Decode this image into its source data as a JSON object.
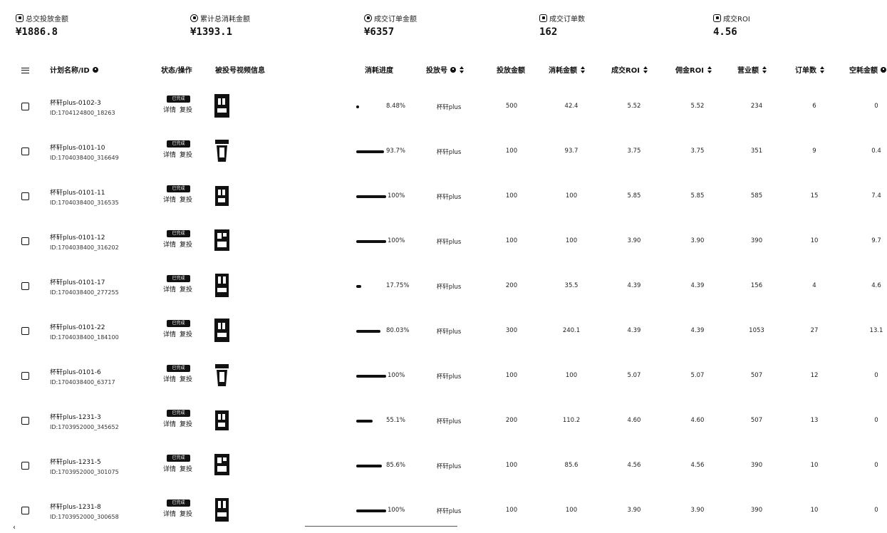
{
  "stats": [
    {
      "label": "总交投放金额",
      "value": "¥1886.8",
      "icon": "wallet-icon"
    },
    {
      "label": "累计总消耗金额",
      "value": "¥1393.1",
      "icon": "spend-icon"
    },
    {
      "label": "成交订单金额",
      "value": "¥6357",
      "icon": "order-amount-icon"
    },
    {
      "label": "成交订单数",
      "value": "162",
      "icon": "order-count-icon"
    },
    {
      "label": "成交ROI",
      "value": "4.56",
      "icon": "roi-icon"
    }
  ],
  "table": {
    "headers": {
      "plan": "计划名称/ID",
      "status": "状态/操作",
      "video": "被投号视频信息",
      "progress": "消耗进度",
      "account": "投放号",
      "budget": "投放金额",
      "spend": "消耗金额",
      "roi": "成交ROI",
      "commission_roi": "佣金ROI",
      "revenue": "营业额",
      "orders": "订单数",
      "idle": "空耗金额"
    },
    "rows": [
      {
        "name": "杯轩plus-0102-3",
        "id": "ID:1704124800_18263",
        "status": "已完成",
        "detail": "详情",
        "repost": "复投",
        "progress": 0.0848,
        "progress_label": "8.48%",
        "account": "杯轩plus",
        "budget": "500",
        "spend": "42.4",
        "roi": "5.52",
        "commission_roi": "5.52",
        "revenue": "234",
        "orders": "6",
        "idle": "0"
      },
      {
        "name": "杯轩plus-0101-10",
        "id": "ID:1704038400_316649",
        "status": "已完成",
        "detail": "详情",
        "repost": "复投",
        "progress": 0.937,
        "progress_label": "93.7%",
        "account": "杯轩plus",
        "budget": "100",
        "spend": "93.7",
        "roi": "3.75",
        "commission_roi": "3.75",
        "revenue": "351",
        "orders": "9",
        "idle": "0.4"
      },
      {
        "name": "杯轩plus-0101-11",
        "id": "ID:1704038400_316535",
        "status": "已完成",
        "detail": "详情",
        "repost": "复投",
        "progress": 1.0,
        "progress_label": "100%",
        "account": "杯轩plus",
        "budget": "100",
        "spend": "100",
        "roi": "5.85",
        "commission_roi": "5.85",
        "revenue": "585",
        "orders": "15",
        "idle": "7.4"
      },
      {
        "name": "杯轩plus-0101-12",
        "id": "ID:1704038400_316202",
        "status": "已完成",
        "detail": "详情",
        "repost": "复投",
        "progress": 1.0,
        "progress_label": "100%",
        "account": "杯轩plus",
        "budget": "100",
        "spend": "100",
        "roi": "3.90",
        "commission_roi": "3.90",
        "revenue": "390",
        "orders": "10",
        "idle": "9.7"
      },
      {
        "name": "杯轩plus-0101-17",
        "id": "ID:1704038400_277255",
        "status": "已完成",
        "detail": "详情",
        "repost": "复投",
        "progress": 0.1775,
        "progress_label": "17.75%",
        "account": "杯轩plus",
        "budget": "200",
        "spend": "35.5",
        "roi": "4.39",
        "commission_roi": "4.39",
        "revenue": "156",
        "orders": "4",
        "idle": "4.6"
      },
      {
        "name": "杯轩plus-0101-22",
        "id": "ID:1704038400_184100",
        "status": "已完成",
        "detail": "详情",
        "repost": "复投",
        "progress": 0.8003,
        "progress_label": "80.03%",
        "account": "杯轩plus",
        "budget": "300",
        "spend": "240.1",
        "roi": "4.39",
        "commission_roi": "4.39",
        "revenue": "1053",
        "orders": "27",
        "idle": "13.1"
      },
      {
        "name": "杯轩plus-0101-6",
        "id": "ID:1704038400_63717",
        "status": "已完成",
        "detail": "详情",
        "repost": "复投",
        "progress": 1.0,
        "progress_label": "100%",
        "account": "杯轩plus",
        "budget": "100",
        "spend": "100",
        "roi": "5.07",
        "commission_roi": "5.07",
        "revenue": "507",
        "orders": "12",
        "idle": "0"
      },
      {
        "name": "杯轩plus-1231-3",
        "id": "ID:1703952000_345652",
        "status": "已完成",
        "detail": "详情",
        "repost": "复投",
        "progress": 0.551,
        "progress_label": "55.1%",
        "account": "杯轩plus",
        "budget": "200",
        "spend": "110.2",
        "roi": "4.60",
        "commission_roi": "4.60",
        "revenue": "507",
        "orders": "13",
        "idle": "0"
      },
      {
        "name": "杯轩plus-1231-5",
        "id": "ID:1703952000_301075",
        "status": "已完成",
        "detail": "详情",
        "repost": "复投",
        "progress": 0.856,
        "progress_label": "85.6%",
        "account": "杯轩plus",
        "budget": "100",
        "spend": "85.6",
        "roi": "4.56",
        "commission_roi": "4.56",
        "revenue": "390",
        "orders": "10",
        "idle": "0"
      },
      {
        "name": "杯轩plus-1231-8",
        "id": "ID:1703952000_300658",
        "status": "已完成",
        "detail": "详情",
        "repost": "复投",
        "progress": 1.0,
        "progress_label": "100%",
        "account": "杯轩plus",
        "budget": "100",
        "spend": "100",
        "roi": "3.90",
        "commission_roi": "3.90",
        "revenue": "390",
        "orders": "10",
        "idle": "0"
      }
    ]
  },
  "colors": {
    "text": "#111111",
    "background": "#ffffff",
    "bar": "#111111"
  }
}
